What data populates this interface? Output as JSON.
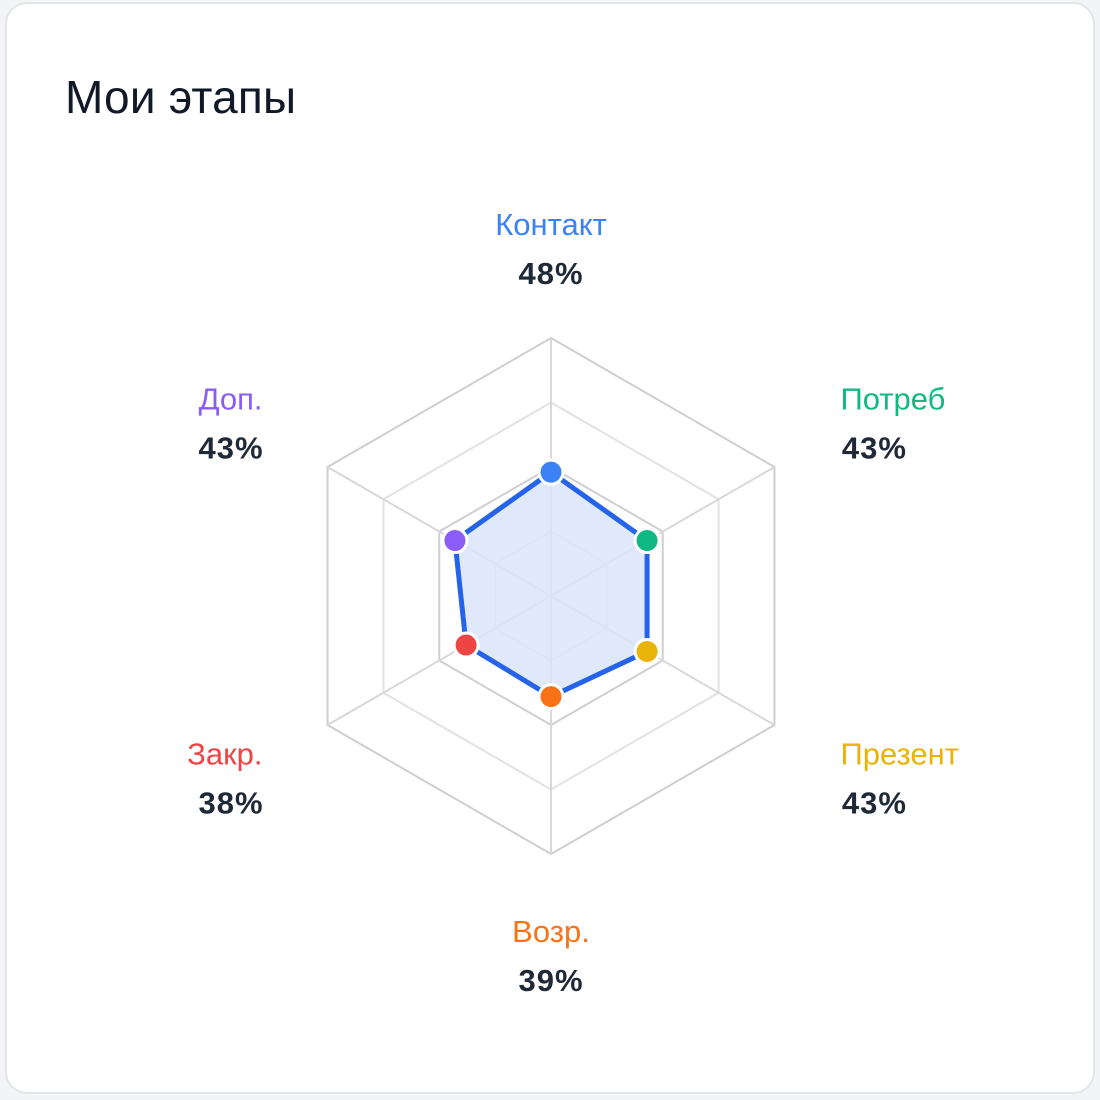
{
  "card": {
    "title": "Мои этапы"
  },
  "chart_data": {
    "type": "radar",
    "title": "Мои этапы",
    "range": [
      0,
      100
    ],
    "grid_levels": 4,
    "axes": [
      {
        "label": "Контакт",
        "value": 48,
        "value_label": "48%",
        "color": "#3b82f6"
      },
      {
        "label": "Потреб",
        "value": 43,
        "value_label": "43%",
        "color": "#10b981"
      },
      {
        "label": "Презент",
        "value": 43,
        "value_label": "43%",
        "color": "#eab308"
      },
      {
        "label": "Возр.",
        "value": 39,
        "value_label": "39%",
        "color": "#f97316"
      },
      {
        "label": "Закр.",
        "value": 38,
        "value_label": "38%",
        "color": "#ef4444"
      },
      {
        "label": "Доп.",
        "value": 43,
        "value_label": "43%",
        "color": "#8b5cf6"
      }
    ],
    "series_color": "#2563eb",
    "fill_color": "#dbe5f9",
    "grid_color": "#d4d4d4"
  }
}
